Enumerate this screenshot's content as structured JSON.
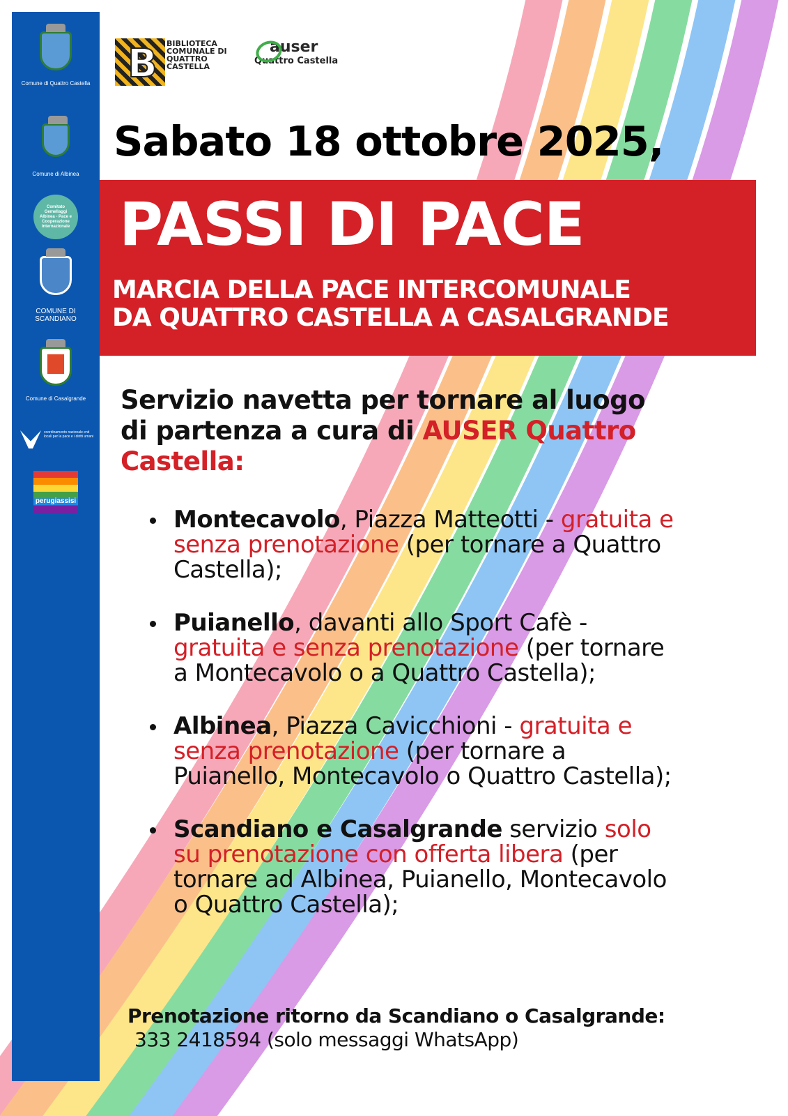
{
  "colors": {
    "sidebar": "#0b57b0",
    "accent_red": "#d42027",
    "rainbow": [
      "#f7a8b8",
      "#fbc08a",
      "#fde68a",
      "#86dca0",
      "#8ec5f5",
      "#d99ae6"
    ]
  },
  "sidebar": {
    "logos": [
      {
        "label": "Comune di Quattro Castella"
      },
      {
        "label": "Comune di Albinea"
      },
      {
        "label": "Comitato Gemellaggi Albinea - Pace e Cooperazione Internazionale"
      },
      {
        "label": "COMUNE DI SCANDIANO"
      },
      {
        "label": "Comune di Casalgrande"
      },
      {
        "label": "coordinamento nazionale enti locali per la pace e i diritti umani"
      },
      {
        "label": "perugiassisi"
      }
    ]
  },
  "header": {
    "library": "BIBLIOTECA COMUNALE DI QUATTRO CASTELLA",
    "auser": "auser",
    "auser_sub": "Quattro Castella"
  },
  "date": "Sabato 18 ottobre 2025,",
  "banner": {
    "title": "PASSI DI PACE",
    "line1": "MARCIA DELLA PACE INTERCOMUNALE",
    "line2": "DA QUATTRO CASTELLA A CASALGRANDE"
  },
  "intro": {
    "text": "Servizio navetta per tornare al luogo di partenza a cura di ",
    "highlight": "AUSER Quattro Castella:"
  },
  "stops": [
    {
      "place": "Montecavolo",
      "where": ", Piazza Matteotti - ",
      "note": "gratuita e senza prenotazione",
      "rest": " (per tornare a Quattro Castella);"
    },
    {
      "place": "Puianello",
      "where": ", davanti allo Sport Cafè - ",
      "note": "gratuita e senza prenotazione",
      "rest": " (per tornare a Montecavolo o a Quattro Castella);"
    },
    {
      "place": "Albinea",
      "where": ", Piazza Cavicchioni - ",
      "note": "gratuita e senza prenotazione",
      "rest": " (per tornare a Puianello, Montecavolo o Quattro Castella);"
    },
    {
      "place": "Scandiano e Casalgrande",
      "where": " servizio ",
      "note": "solo su prenotazione con offerta libera",
      "rest": " (per tornare ad Albinea, Puianello, Montecavolo o Quattro Castella);"
    }
  ],
  "booking": {
    "label": "Prenotazione ritorno da Scandiano o Casalgrande:",
    "phone": "333 2418594 (solo messaggi WhatsApp)"
  }
}
